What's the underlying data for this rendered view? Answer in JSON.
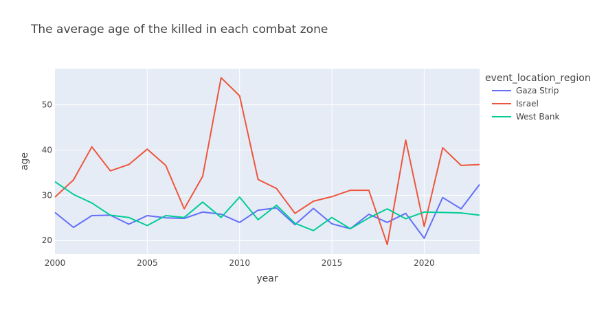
{
  "chart_data": {
    "type": "line",
    "title": "The average age of the killed in each combat zone",
    "xlabel": "year",
    "ylabel": "age",
    "xlim": [
      2000,
      2023
    ],
    "ylim": [
      17,
      58
    ],
    "xticks": [
      2000,
      2005,
      2010,
      2015,
      2020
    ],
    "yticks": [
      20,
      30,
      40,
      50
    ],
    "grid": true,
    "legend": {
      "title": "event_location_region",
      "placement": "right"
    },
    "x": [
      2000,
      2001,
      2002,
      2003,
      2004,
      2005,
      2006,
      2007,
      2008,
      2009,
      2010,
      2011,
      2012,
      2013,
      2014,
      2015,
      2016,
      2017,
      2018,
      2019,
      2020,
      2021,
      2022,
      2023
    ],
    "series": [
      {
        "name": "Gaza Strip",
        "color": "#636efa",
        "values": [
          26.2,
          22.9,
          25.5,
          25.6,
          23.6,
          25.5,
          25.0,
          24.9,
          26.3,
          25.8,
          24.0,
          26.7,
          27.2,
          23.5,
          27.1,
          23.7,
          22.6,
          25.8,
          24.0,
          26.0,
          20.5,
          29.5,
          27.0,
          32.4
        ]
      },
      {
        "name": "Israel",
        "color": "#ef553b",
        "values": [
          29.6,
          33.4,
          40.7,
          35.4,
          36.8,
          40.2,
          36.6,
          27.0,
          34.2,
          56.0,
          52.0,
          33.5,
          31.5,
          26.0,
          28.7,
          29.7,
          31.1,
          31.1,
          19.1,
          42.2,
          23.1,
          40.5,
          36.6,
          36.8
        ]
      },
      {
        "name": "West Bank",
        "color": "#00cc96",
        "values": [
          33.0,
          30.2,
          28.3,
          25.6,
          25.1,
          23.3,
          25.5,
          25.1,
          28.5,
          25.1,
          29.6,
          24.6,
          27.8,
          23.8,
          22.2,
          25.1,
          22.6,
          25.0,
          27.0,
          24.8,
          26.3,
          26.2,
          26.1,
          25.6
        ]
      }
    ]
  }
}
